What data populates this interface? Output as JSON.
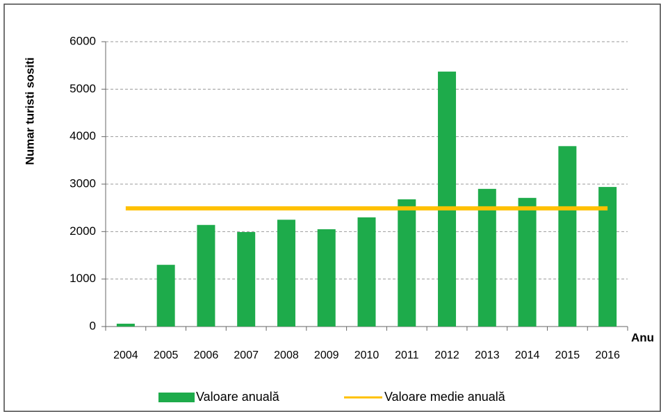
{
  "chart_data": {
    "type": "bar",
    "ylabel": "Numar turisti sositi",
    "xlabel": "Anu",
    "categories": [
      "2004",
      "2005",
      "2006",
      "2007",
      "2008",
      "2009",
      "2010",
      "2011",
      "2012",
      "2013",
      "2014",
      "2015",
      "2016"
    ],
    "series": [
      {
        "name": "Valoare anuală",
        "type": "bar",
        "color": "#1eab4b",
        "values": [
          60,
          1300,
          2140,
          1990,
          2250,
          2050,
          2300,
          2680,
          5370,
          2900,
          2710,
          3800,
          2940
        ]
      },
      {
        "name": "Valoare medie anuală",
        "type": "line",
        "color": "#ffc000",
        "values": [
          2490,
          2490,
          2490,
          2490,
          2490,
          2490,
          2490,
          2490,
          2490,
          2490,
          2490,
          2490,
          2490
        ]
      }
    ],
    "ylim": [
      0,
      6000
    ],
    "yticks": [
      0,
      1000,
      2000,
      3000,
      4000,
      5000,
      6000
    ],
    "grid": true,
    "legend": "bottom"
  }
}
